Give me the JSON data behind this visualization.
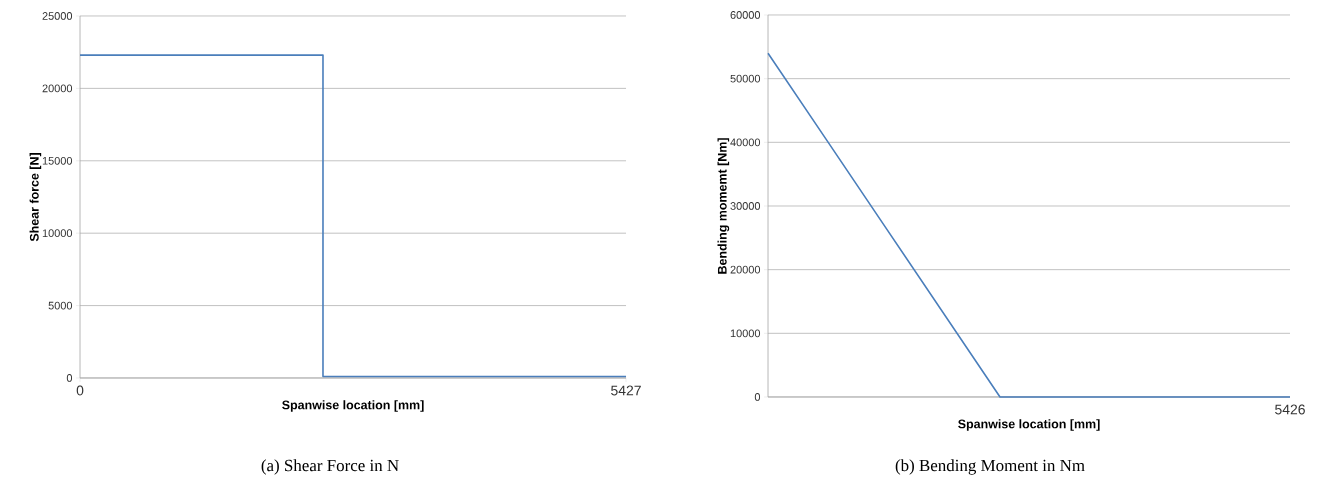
{
  "chart_data": [
    {
      "type": "line",
      "xlabel": "Spanwise location [mm]",
      "ylabel": "Shear force [N]",
      "annotations": [
        "(a) Shear Force in N"
      ],
      "x": [
        0,
        2415,
        2415,
        5427
      ],
      "series": [
        {
          "color": "#4a7ebb",
          "values": [
            22300,
            22300,
            100,
            100
          ]
        }
      ],
      "xlim": [
        0,
        5427
      ],
      "xticks": [
        0,
        5427
      ],
      "ylim": [
        0,
        25000
      ],
      "yticks": [
        0,
        5000,
        10000,
        15000,
        20000,
        25000
      ],
      "grid": "y"
    },
    {
      "type": "line",
      "xlabel": "Spanwise location [mm]",
      "ylabel": "Bending momemt [Nm]",
      "annotations": [
        "(b) Bending Moment in Nm"
      ],
      "categories": [
        null,
        null,
        null,
        null,
        null,
        null,
        null,
        null,
        null,
        "5426"
      ],
      "series": [
        {
          "color": "#4a7ebb",
          "values": [
            54000,
            40500,
            27000,
            13500,
            0,
            0,
            0,
            0,
            0,
            0
          ]
        }
      ],
      "ylim": [
        0,
        60000
      ],
      "yticks": [
        0,
        10000,
        20000,
        30000,
        40000,
        50000,
        60000
      ],
      "grid": "y"
    }
  ]
}
